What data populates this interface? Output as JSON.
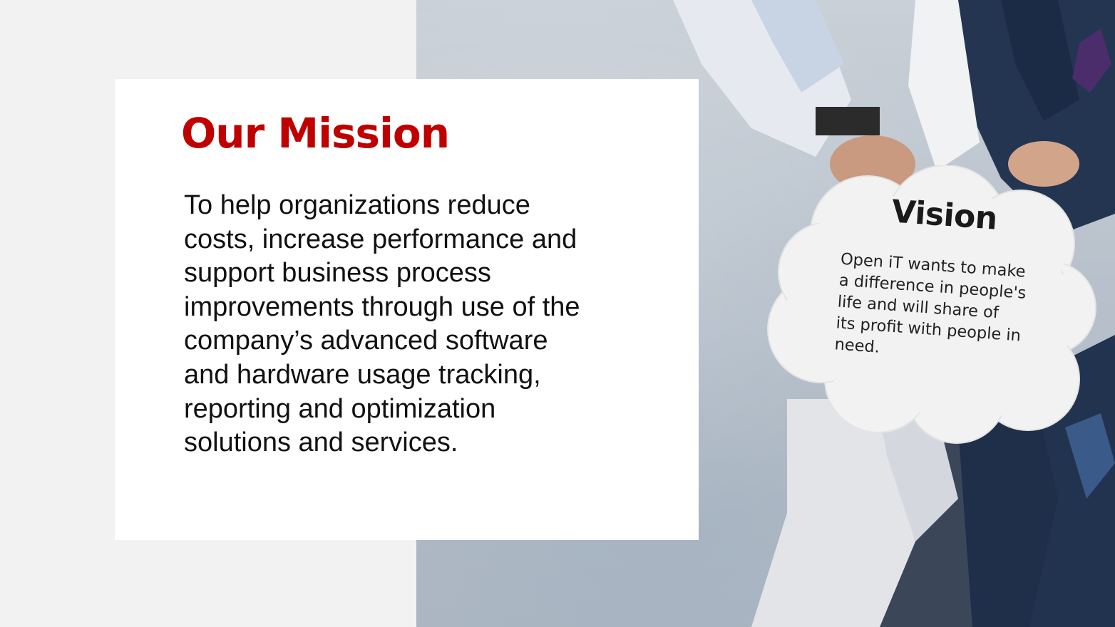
{
  "slide": {
    "mission": {
      "title": "Our Mission",
      "body_lines": [
        "To help organizations reduce",
        "costs, increase performance and",
        "support business process",
        "improvements through use of the",
        "company’s advanced software",
        "and hardware usage tracking,",
        "reporting and optimization",
        "solutions and services."
      ],
      "title_color": "#c00000"
    },
    "vision": {
      "title": "Vision",
      "body_lines": [
        "Open iT wants to make",
        "a difference in people's",
        "life and  will share of",
        "its profit with people in",
        "need."
      ]
    },
    "photo": {
      "icon": "team-hands-stack-photo"
    }
  }
}
